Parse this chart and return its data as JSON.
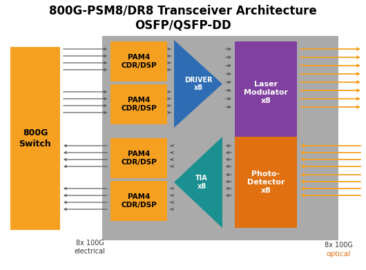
{
  "title_line1": "800G-PSM8/DR8 Transceiver Architecture",
  "title_line2": "OSFP/QSFP-DD",
  "title_fontsize": 12,
  "bg_color": "#ffffff",
  "gray_bg": "#aaaaaa",
  "orange_color": "#f5a020",
  "orange_dark": "#e07010",
  "blue_color": "#2e6db4",
  "teal_color": "#1a9090",
  "purple_color": "#8040a0",
  "arrow_orange": "#f5a020",
  "arrow_gray": "#555555",
  "label_dark": "#333333",
  "label_orange": "#e07010",
  "switch_label": "800G\nSwitch",
  "pam4_label": "PAM4\nCDR/DSP",
  "driver_label": "DRIVER\nx8",
  "tia_label": "TIA\nx8",
  "laser_label": "Laser\nModulator\nx8",
  "photo_label": "Photo-\nDetector\nx8",
  "elec_label": "8x 100G\nelectrical",
  "opt_label1": "8x 100G",
  "opt_label2": "optical"
}
